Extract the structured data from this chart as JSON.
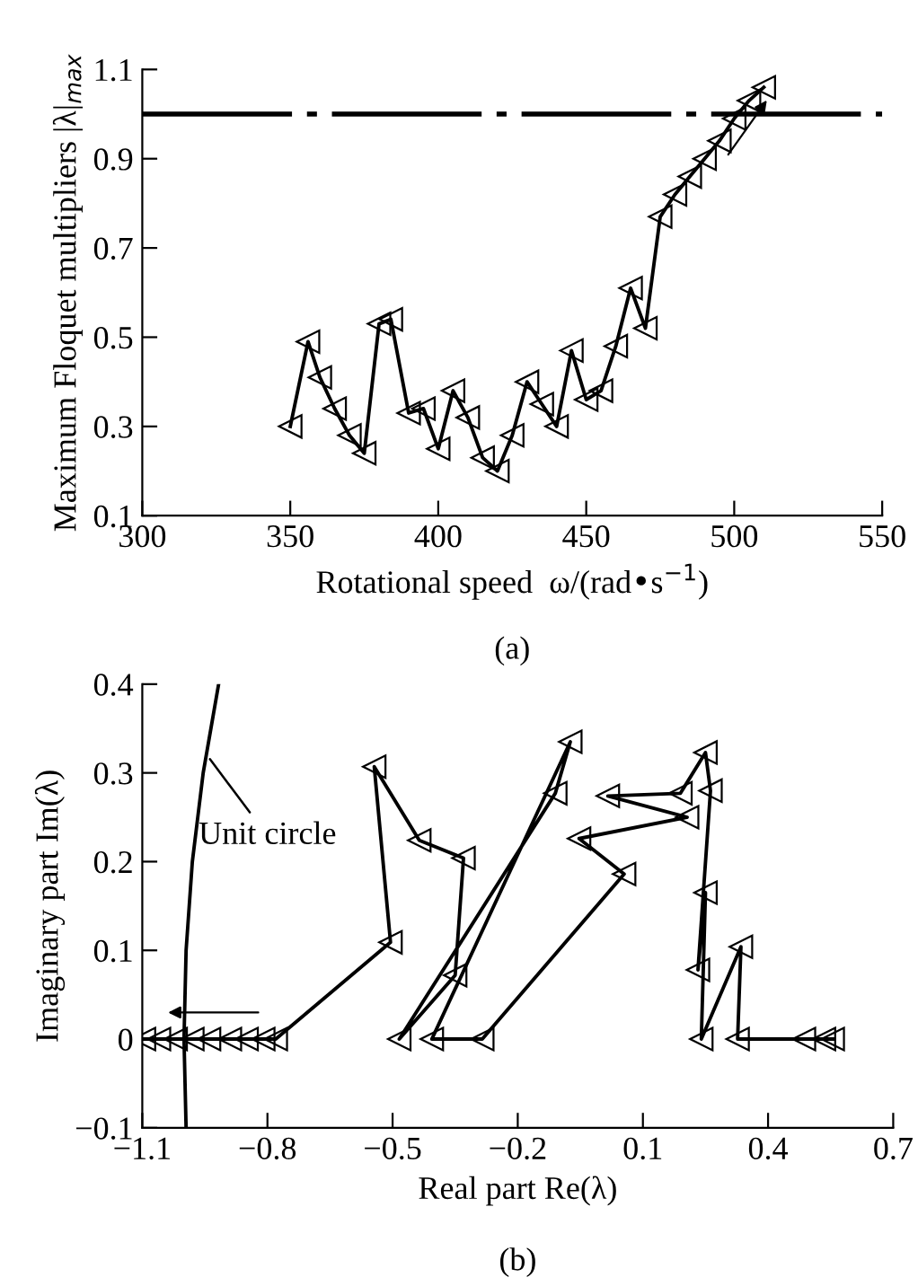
{
  "chart_data": [
    {
      "type": "line",
      "xlabel": "Rotational speed  ω/(rad•s$^{−1}$)",
      "ylabel": "Maximum Floquet multipliers |λ|$_{max}$",
      "xlim": [
        300,
        550
      ],
      "xticks": [
        300,
        350,
        400,
        450,
        500,
        550
      ],
      "ylim": [
        0.1,
        1.1
      ],
      "yticks": [
        0.1,
        0.3,
        0.5,
        0.7,
        0.9,
        1.1
      ],
      "marker": "triangle",
      "line_style": "solid",
      "grid": false,
      "legend": false,
      "series": [
        {
          "color": "#000000",
          "x": [
            350,
            356,
            360,
            365,
            370,
            375,
            380,
            384,
            390,
            395,
            400,
            405,
            410,
            415,
            420,
            425,
            430,
            435,
            440,
            445,
            450,
            455,
            460,
            465,
            470,
            475,
            480,
            485,
            490,
            495,
            500,
            505,
            510
          ],
          "values": [
            0.3,
            0.49,
            0.41,
            0.34,
            0.28,
            0.24,
            0.53,
            0.54,
            0.33,
            0.34,
            0.25,
            0.38,
            0.32,
            0.23,
            0.2,
            0.28,
            0.4,
            0.35,
            0.3,
            0.47,
            0.36,
            0.38,
            0.48,
            0.61,
            0.52,
            0.77,
            0.82,
            0.86,
            0.9,
            0.94,
            0.99,
            1.03,
            1.06
          ]
        }
      ],
      "ref_lines": [
        {
          "axis": "y",
          "value": 1.0,
          "color": "#000000",
          "line_style": "dashed"
        }
      ],
      "annotations": [
        "(a)"
      ]
    },
    {
      "type": "line",
      "xlabel": "Real part Re(λ)",
      "ylabel": "Imaginary part Im(λ)",
      "xlim": [
        -1.1,
        0.7
      ],
      "xticks": [
        {
          "value": -1.1,
          "label": "−1.1"
        },
        {
          "value": -0.8,
          "label": "−0.8"
        },
        {
          "value": -0.5,
          "label": "−0.5"
        },
        {
          "value": -0.2,
          "label": "−0.2"
        },
        0.1,
        0.4,
        0.7
      ],
      "ylim": [
        -0.1,
        0.4
      ],
      "yticks": [
        {
          "value": -0.1,
          "label": "−0.1"
        },
        0,
        0.1,
        0.2,
        0.3,
        0.4
      ],
      "marker": "triangle",
      "line_style": "solid",
      "grid": false,
      "legend": false,
      "series": [
        {
          "color": "#000000",
          "x": [
            0.555,
            0.534,
            0.486,
            0.327,
            0.335,
            0.24,
            0.25,
            0.232,
            0.262,
            0.25,
            0.19,
            0.016,
            0.206,
            -0.053,
            0.055,
            -0.285,
            -0.406,
            -0.074,
            -0.11,
            -0.484,
            -0.35,
            -0.33,
            -0.436,
            -0.544,
            -0.505,
            -0.78,
            -0.81,
            -0.85,
            -0.89,
            -0.94,
            -0.98,
            -1.02,
            -1.06,
            -1.096
          ],
          "values": [
            0,
            0,
            0,
            0,
            0.104,
            0,
            0.165,
            0.078,
            0.28,
            0.323,
            0.277,
            0.274,
            0.25,
            0.226,
            0.186,
            0,
            0,
            0.335,
            0.277,
            0,
            0.072,
            0.204,
            0.224,
            0.307,
            0.109,
            0,
            0,
            0,
            0,
            0,
            0,
            0,
            0,
            0
          ]
        },
        {
          "color": "#000000",
          "marker": "none",
          "line_style": "solid",
          "x": [
            -0.995,
            -1.0,
            -0.995,
            -0.98,
            -0.954,
            -0.917
          ],
          "values": [
            -0.1,
            0,
            0.1,
            0.2,
            0.3,
            0.4
          ]
        }
      ],
      "annotations": [
        {
          "text": "Unit circle",
          "x": -0.945,
          "y": 0.32
        },
        "(b)"
      ]
    }
  ]
}
